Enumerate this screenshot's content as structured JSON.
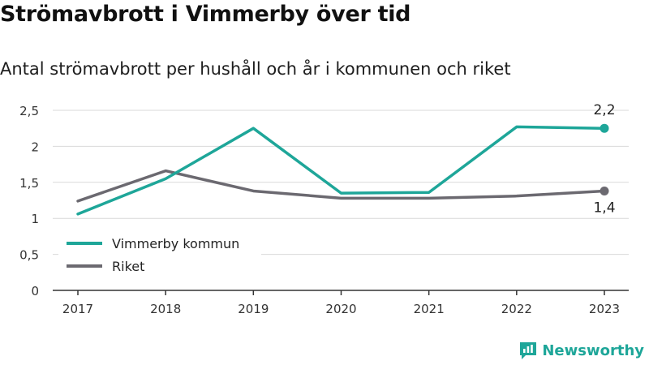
{
  "header": {
    "title": "Strömavbrott i Vimmerby över tid",
    "subtitle": "Antal strömavbrott per hushåll och år i kommunen och riket"
  },
  "brand": {
    "name": "Newsworthy",
    "color": "#1ea699"
  },
  "chart_data": {
    "type": "line",
    "title": "Strömavbrott i Vimmerby över tid",
    "subtitle": "Antal strömavbrott per hushåll och år i kommunen och riket",
    "xlabel": "",
    "ylabel": "",
    "categories": [
      "2017",
      "2018",
      "2019",
      "2020",
      "2021",
      "2022",
      "2023"
    ],
    "ylim": [
      0,
      2.5
    ],
    "yticks": [
      0,
      0.5,
      1,
      1.5,
      2,
      2.5
    ],
    "ytick_labels": [
      "0",
      "0,5",
      "1",
      "1,5",
      "2",
      "2,5"
    ],
    "grid": true,
    "legend_position": "bottom-left",
    "series": [
      {
        "name": "Vimmerby kommun",
        "color": "#1ea699",
        "values": [
          1.06,
          1.55,
          2.25,
          1.35,
          1.36,
          2.27,
          2.25
        ],
        "end_label": "2,2"
      },
      {
        "name": "Riket",
        "color": "#6b6970",
        "values": [
          1.24,
          1.66,
          1.38,
          1.28,
          1.28,
          1.31,
          1.38
        ],
        "end_label": "1,4"
      }
    ]
  }
}
